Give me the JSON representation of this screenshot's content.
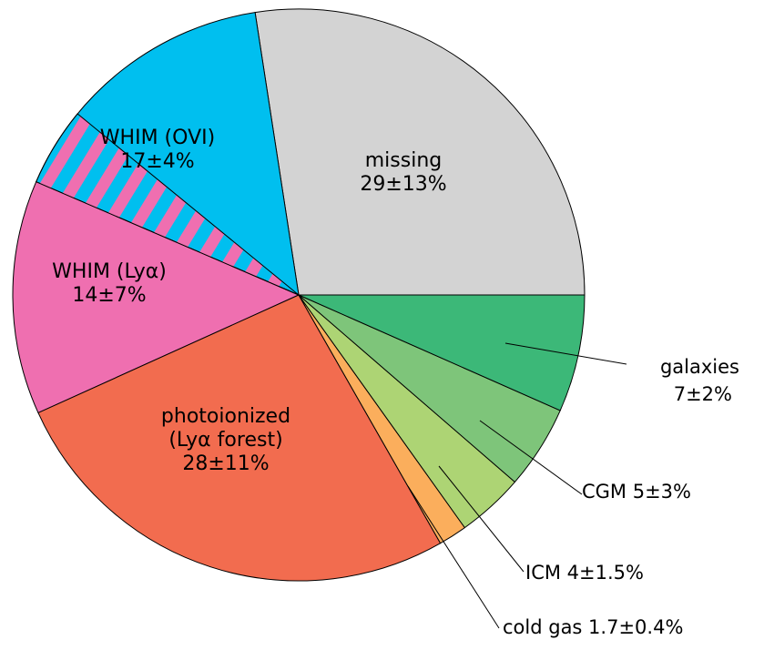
{
  "chart_data": {
    "type": "pie",
    "title": "",
    "start_angle_deg": 0,
    "direction": "counterclockwise",
    "slices": [
      {
        "name": "missing",
        "value": 29,
        "display": "29±13%",
        "color": "#d3d3d3",
        "label_lines": [
          "missing",
          "29±13%"
        ],
        "label_position": "inside"
      },
      {
        "name": "WHIM (OVI)",
        "value": 17,
        "display": "17±4%",
        "color": "#00bfef",
        "hatch_color": "#ef6fb0",
        "label_lines": [
          "WHIM (OVI)",
          "17±4%"
        ],
        "label_position": "inside"
      },
      {
        "name": "WHIM (Lyα)",
        "value": 14,
        "display": "14±7%",
        "color": "#ef6fb0",
        "label_lines": [
          "WHIM (Lyα)",
          "14±7%"
        ],
        "label_position": "inside"
      },
      {
        "name": "photoionized (Lyα forest)",
        "value": 28,
        "display": "28±11%",
        "color": "#f26c4f",
        "label_lines": [
          "photoionized",
          "(Lyα forest)",
          "28±11%"
        ],
        "label_position": "inside"
      },
      {
        "name": "cold gas",
        "value": 1.7,
        "display": "1.7±0.4%",
        "color": "#fbae5c",
        "label_lines": [
          "cold gas 1.7±0.4%"
        ],
        "label_position": "outside"
      },
      {
        "name": "ICM",
        "value": 4,
        "display": "4±1.5%",
        "color": "#add474",
        "label_lines": [
          "ICM 4±1.5%"
        ],
        "label_position": "outside"
      },
      {
        "name": "CGM",
        "value": 5,
        "display": "5±3%",
        "color": "#7ec57a",
        "label_lines": [
          "CGM 5±3%"
        ],
        "label_position": "outside"
      },
      {
        "name": "galaxies",
        "value": 7,
        "display": "7±2%",
        "color": "#3cb878",
        "label_lines": [
          "galaxies",
          "7±2%"
        ],
        "label_position": "outside"
      }
    ]
  }
}
